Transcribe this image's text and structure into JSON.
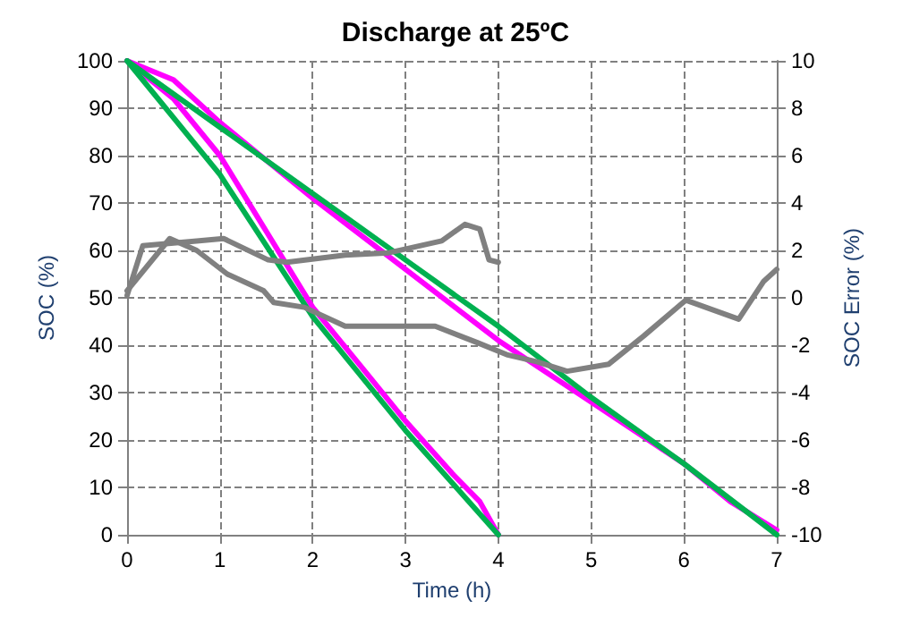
{
  "chart_data": {
    "type": "line",
    "title": "Discharge at 25ºC",
    "xlabel": "Time (h)",
    "ylabel": "SOC (%)",
    "y2label": "SOC Error (%)",
    "xlim": [
      0,
      7
    ],
    "xticks": [
      0,
      1,
      2,
      3,
      4,
      5,
      6,
      7
    ],
    "ylim": [
      0,
      100
    ],
    "yticks": [
      0,
      10,
      20,
      30,
      40,
      50,
      60,
      70,
      80,
      90,
      100
    ],
    "y2lim": [
      -10,
      10
    ],
    "y2ticks": [
      -10,
      -8,
      -6,
      -4,
      -2,
      0,
      2,
      4,
      6,
      8,
      10
    ],
    "grid": true,
    "marker": "none",
    "line_style": "solid",
    "series": [
      {
        "color": "#ff00ff",
        "x": [
          0,
          0.5,
          1,
          1.5,
          2,
          2.5,
          3,
          3.5,
          3.8,
          4
        ],
        "values": [
          100,
          92,
          80,
          64,
          48,
          36,
          24,
          13,
          7,
          0
        ]
      },
      {
        "color": "#00b050",
        "x": [
          0,
          1,
          2,
          3,
          4
        ],
        "values": [
          100,
          76,
          46,
          22,
          0
        ]
      },
      {
        "color": "#ff00ff",
        "x": [
          0,
          0.5,
          1,
          2,
          3,
          4,
          5,
          6,
          6.5,
          7
        ],
        "values": [
          100,
          96,
          87,
          71,
          56,
          41,
          28,
          15,
          7,
          1
        ]
      },
      {
        "color": "#00b050",
        "x": [
          0,
          1,
          2,
          3,
          4,
          5,
          6,
          7
        ],
        "values": [
          100,
          86,
          72,
          58,
          44,
          29,
          15,
          0
        ]
      },
      {
        "color": "#808080",
        "axis": "y2",
        "x": [
          0,
          0.17,
          0.75,
          1.04,
          1.52,
          1.72,
          2.35,
          2.82,
          3.39,
          3.64,
          3.8,
          3.9,
          4
        ],
        "values": [
          0.1,
          2.2,
          2.4,
          2.5,
          1.6,
          1.5,
          1.8,
          1.9,
          2.4,
          3.1,
          2.9,
          1.6,
          1.5
        ]
      },
      {
        "color": "#808080",
        "axis": "y2",
        "x": [
          0,
          0.46,
          0.75,
          1.08,
          1.47,
          1.58,
          1.91,
          2.35,
          3.32,
          3.78,
          4.09,
          4.42,
          4.74,
          5.19,
          5.57,
          6.02,
          6.59,
          6.86,
          7
        ],
        "values": [
          0.3,
          2.5,
          2,
          1,
          0.3,
          -0.2,
          -0.4,
          -1.2,
          -1.2,
          -1.9,
          -2.4,
          -2.7,
          -3.1,
          -2.8,
          -1.6,
          -0.1,
          -0.9,
          0.7,
          1.2
        ]
      }
    ]
  }
}
